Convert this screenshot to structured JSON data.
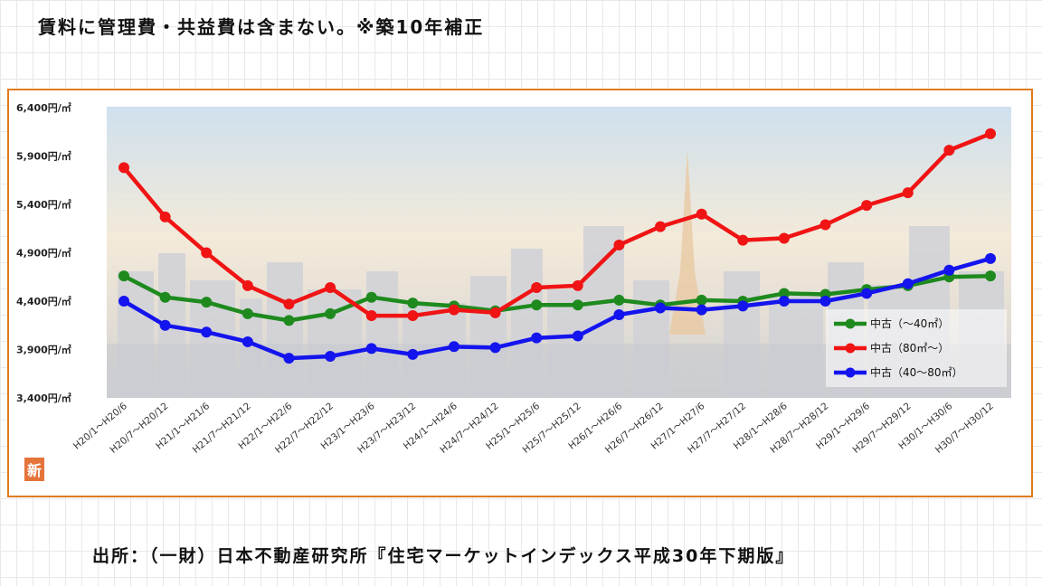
{
  "header": {
    "note": "賃料に管理費・共益費は含まない。※築10年補正"
  },
  "footer": {
    "source": "出所：（一財）日本不動産研究所『住宅マーケットインデックス平成30年下期版』"
  },
  "badge": {
    "label": "新"
  },
  "chart_data": {
    "type": "line",
    "title": "",
    "ylim": [
      3400,
      6400
    ],
    "ytick_values": [
      3400,
      3900,
      4400,
      4900,
      5400,
      5900,
      6400
    ],
    "ytick_labels": [
      "3,400円/㎡",
      "3,900円/㎡",
      "4,400円/㎡",
      "4,900円/㎡",
      "5,400円/㎡",
      "5,900円/㎡",
      "6,400円/㎡"
    ],
    "categories": [
      "H20/1～H20/6",
      "H20/7～H20/12",
      "H21/1～H21/6",
      "H21/7～H21/12",
      "H22/1～H22/6",
      "H22/7～H22/12",
      "H23/1～H23/6",
      "H23/7～H23/12",
      "H24/1～H24/6",
      "H24/7～H24/12",
      "H25/1～H25/6",
      "H25/7～H25/12",
      "H26/1～H26/6",
      "H26/7～H26/12",
      "H27/1～H27/6",
      "H27/7～H27/12",
      "H28/1～H28/6",
      "H28/7～H28/12",
      "H29/1～H29/6",
      "H29/7～H29/12",
      "H30/1～H30/6",
      "H30/7～H30/12"
    ],
    "legend_position": "bottom-right",
    "grid": false,
    "series": [
      {
        "name": "中古（～40㎡）",
        "color": "#1e8a1e",
        "values": [
          4660,
          4440,
          4390,
          4270,
          4200,
          4270,
          4440,
          4380,
          4350,
          4300,
          4360,
          4360,
          4410,
          4360,
          4410,
          4400,
          4480,
          4470,
          4520,
          4560,
          4650,
          4660
        ]
      },
      {
        "name": "中古（80㎡～）",
        "color": "#f01414",
        "values": [
          5780,
          5270,
          4900,
          4560,
          4370,
          4540,
          4250,
          4250,
          4310,
          4280,
          4540,
          4560,
          4980,
          5170,
          5300,
          5030,
          5050,
          5190,
          5390,
          5520,
          5960,
          6130
        ]
      },
      {
        "name": "中古（40～80㎡）",
        "color": "#1414ee",
        "values": [
          4400,
          4150,
          4080,
          3980,
          3810,
          3830,
          3910,
          3850,
          3930,
          3920,
          4020,
          4040,
          4260,
          4330,
          4310,
          4350,
          4400,
          4400,
          4480,
          4580,
          4720,
          4840
        ]
      }
    ]
  }
}
